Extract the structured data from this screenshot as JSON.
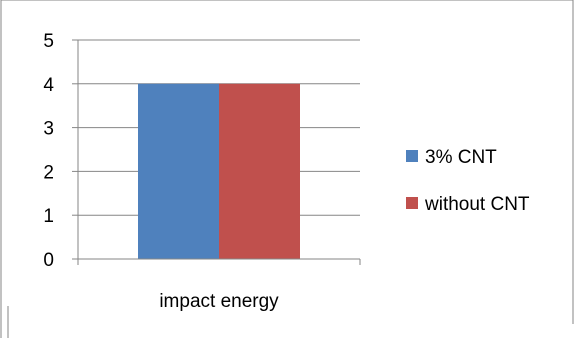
{
  "chart_data": {
    "type": "bar",
    "categories": [
      "impact energy"
    ],
    "series": [
      {
        "name": "3% CNT",
        "values": [
          4
        ],
        "color": "#4F81BD"
      },
      {
        "name": "without CNT",
        "values": [
          4
        ],
        "color": "#C0504D"
      }
    ],
    "ylim": [
      0,
      5
    ],
    "yticks": [
      "0",
      "1",
      "2",
      "3",
      "4",
      "5"
    ],
    "grid": true,
    "legend_position": "right"
  }
}
